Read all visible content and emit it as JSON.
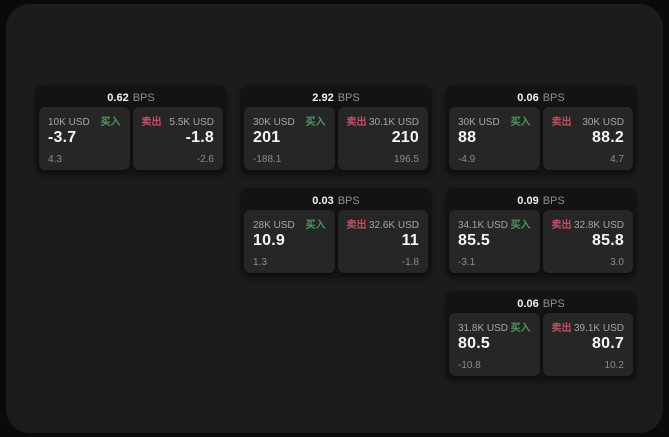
{
  "labels": {
    "bps": "BPS",
    "buy": "买入",
    "sell": "卖出"
  },
  "colors": {
    "page_background": "#0a0a0a",
    "panel_background": "#1c1c1d",
    "card_background": "#131314",
    "subpanel_background": "#262627",
    "buy_green": "#4a9b61",
    "sell_red": "#c05061"
  },
  "cards": [
    {
      "bps": "0.62",
      "buy": {
        "amount": "10K USD",
        "price": "-3.7",
        "delta": "4.3"
      },
      "sell": {
        "amount": "5.5K USD",
        "price": "-1.8",
        "delta": "-2.6"
      }
    },
    {
      "bps": "2.92",
      "buy": {
        "amount": "30K USD",
        "price": "201",
        "delta": "-188.1"
      },
      "sell": {
        "amount": "30.1K USD",
        "price": "210",
        "delta": "196.5"
      }
    },
    {
      "bps": "0.06",
      "buy": {
        "amount": "30K USD",
        "price": "88",
        "delta": "-4.9"
      },
      "sell": {
        "amount": "30K USD",
        "price": "88.2",
        "delta": "4.7"
      }
    },
    {
      "bps": "0.03",
      "buy": {
        "amount": "28K USD",
        "price": "10.9",
        "delta": "1.3"
      },
      "sell": {
        "amount": "32.6K USD",
        "price": "11",
        "delta": "-1.8"
      }
    },
    {
      "bps": "0.09",
      "buy": {
        "amount": "34.1K USD",
        "price": "85.5",
        "delta": "-3.1"
      },
      "sell": {
        "amount": "32.8K USD",
        "price": "85.8",
        "delta": "3.0"
      }
    },
    {
      "bps": "0.06",
      "buy": {
        "amount": "31.8K USD",
        "price": "80.5",
        "delta": "-10.8"
      },
      "sell": {
        "amount": "39.1K USD",
        "price": "80.7",
        "delta": "10.2"
      }
    }
  ]
}
